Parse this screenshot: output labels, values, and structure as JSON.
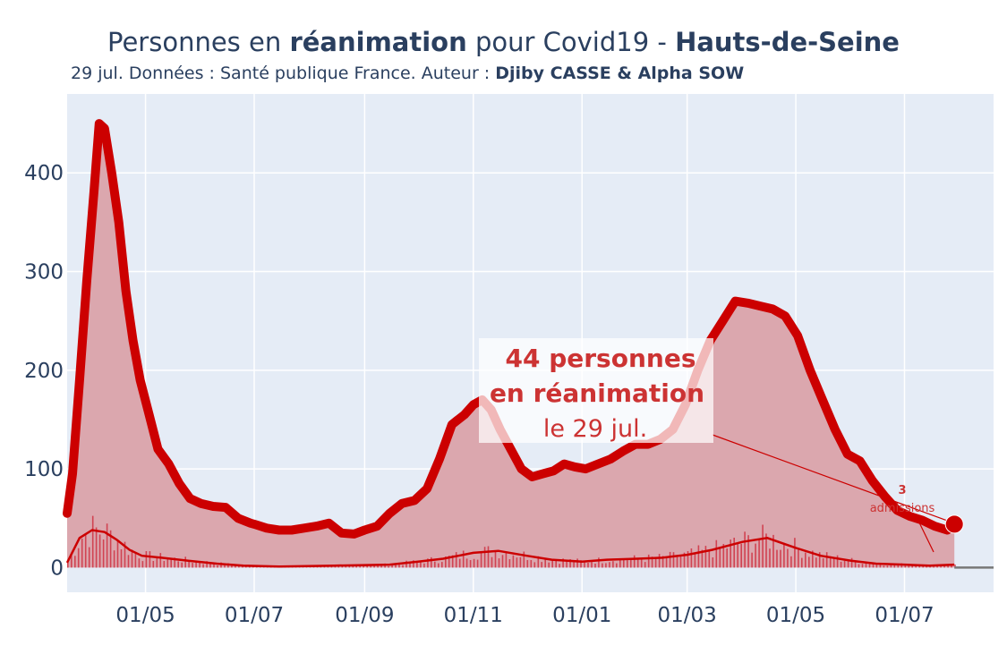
{
  "header": {
    "title_part1": "Personnes en ",
    "title_bold1": "réanimation",
    "title_part2": " pour Covid19 - ",
    "title_bold2": "Hauts-de-Seine",
    "subtitle_prefix": "29 jul. Données : Santé publique France. Auteur : ",
    "subtitle_author": "Djiby CASSE & Alpha SOW"
  },
  "colors": {
    "line": "#cc0000",
    "area": "#dba7ae",
    "plot_bg": "#e5ecf6",
    "grid": "#ffffff",
    "text": "#2a3f5f",
    "annotation": "#cc3333"
  },
  "annotation": {
    "line1": "44 personnes",
    "line2": "en réanimation",
    "line3": "le 29 jul.",
    "small_value": "3",
    "small_label": "admissions"
  },
  "chart_data": {
    "type": "area",
    "x_axis": {
      "ticks": [
        "01/05",
        "01/07",
        "01/09",
        "01/11",
        "01/01",
        "01/03",
        "01/05",
        "01/07"
      ],
      "range": [
        "2020-03-18",
        "2021-08-20"
      ]
    },
    "y_axis": {
      "ticks": [
        0,
        100,
        200,
        300,
        400
      ],
      "range": [
        -25,
        480
      ]
    },
    "grid": true,
    "series": [
      {
        "kind": "hospitalized_icu",
        "x": [
          "2020-03-18",
          "2020-03-21",
          "2020-03-25",
          "2020-03-29",
          "2020-04-02",
          "2020-04-05",
          "2020-04-08",
          "2020-04-12",
          "2020-04-16",
          "2020-04-20",
          "2020-04-24",
          "2020-04-28",
          "2020-05-03",
          "2020-05-08",
          "2020-05-14",
          "2020-05-20",
          "2020-05-26",
          "2020-06-01",
          "2020-06-08",
          "2020-06-15",
          "2020-06-22",
          "2020-06-29",
          "2020-07-01",
          "2020-07-08",
          "2020-07-15",
          "2020-07-22",
          "2020-07-29",
          "2020-08-05",
          "2020-08-12",
          "2020-08-19",
          "2020-08-26",
          "2020-09-01",
          "2020-09-08",
          "2020-09-15",
          "2020-09-22",
          "2020-09-29",
          "2020-10-06",
          "2020-10-13",
          "2020-10-20",
          "2020-10-27",
          "2020-11-01",
          "2020-11-06",
          "2020-11-11",
          "2020-11-16",
          "2020-11-22",
          "2020-11-28",
          "2020-12-04",
          "2020-12-10",
          "2020-12-16",
          "2020-12-22",
          "2020-12-28",
          "2021-01-03",
          "2021-01-10",
          "2021-01-17",
          "2021-01-24",
          "2021-01-31",
          "2021-02-07",
          "2021-02-14",
          "2021-02-21",
          "2021-02-28",
          "2021-03-07",
          "2021-03-14",
          "2021-03-21",
          "2021-03-28",
          "2021-04-04",
          "2021-04-11",
          "2021-04-18",
          "2021-04-25",
          "2021-05-02",
          "2021-05-09",
          "2021-05-16",
          "2021-05-23",
          "2021-05-30",
          "2021-06-06",
          "2021-06-13",
          "2021-06-20",
          "2021-06-27",
          "2021-07-04",
          "2021-07-11",
          "2021-07-18",
          "2021-07-25",
          "2021-07-29"
        ],
        "values": [
          55,
          95,
          190,
          290,
          380,
          450,
          445,
          400,
          350,
          280,
          230,
          190,
          155,
          120,
          105,
          85,
          70,
          65,
          62,
          61,
          50,
          45,
          44,
          40,
          38,
          38,
          40,
          42,
          45,
          35,
          34,
          38,
          42,
          55,
          65,
          68,
          80,
          110,
          145,
          155,
          165,
          170,
          160,
          140,
          120,
          100,
          92,
          95,
          98,
          105,
          102,
          100,
          105,
          110,
          118,
          125,
          125,
          130,
          140,
          165,
          200,
          230,
          250,
          270,
          268,
          265,
          262,
          255,
          235,
          200,
          170,
          140,
          115,
          108,
          88,
          72,
          58,
          52,
          48,
          42,
          38,
          44
        ]
      },
      {
        "kind": "daily_admissions",
        "x": [
          "2020-03-18",
          "2020-03-25",
          "2020-04-01",
          "2020-04-08",
          "2020-04-15",
          "2020-04-22",
          "2020-04-29",
          "2020-05-10",
          "2020-05-25",
          "2020-06-10",
          "2020-06-25",
          "2020-07-15",
          "2020-08-15",
          "2020-09-15",
          "2020-10-01",
          "2020-10-15",
          "2020-11-01",
          "2020-11-15",
          "2020-12-01",
          "2020-12-15",
          "2021-01-01",
          "2021-01-15",
          "2021-02-01",
          "2021-02-15",
          "2021-03-01",
          "2021-03-15",
          "2021-04-01",
          "2021-04-15",
          "2021-05-01",
          "2021-05-15",
          "2021-06-01",
          "2021-06-15",
          "2021-07-01",
          "2021-07-15",
          "2021-07-29"
        ],
        "values": [
          5,
          30,
          38,
          36,
          28,
          18,
          12,
          10,
          7,
          4,
          2,
          1,
          2,
          3,
          6,
          9,
          15,
          17,
          12,
          8,
          6,
          8,
          9,
          10,
          13,
          18,
          26,
          30,
          20,
          12,
          7,
          4,
          3,
          2,
          3
        ]
      }
    ]
  }
}
